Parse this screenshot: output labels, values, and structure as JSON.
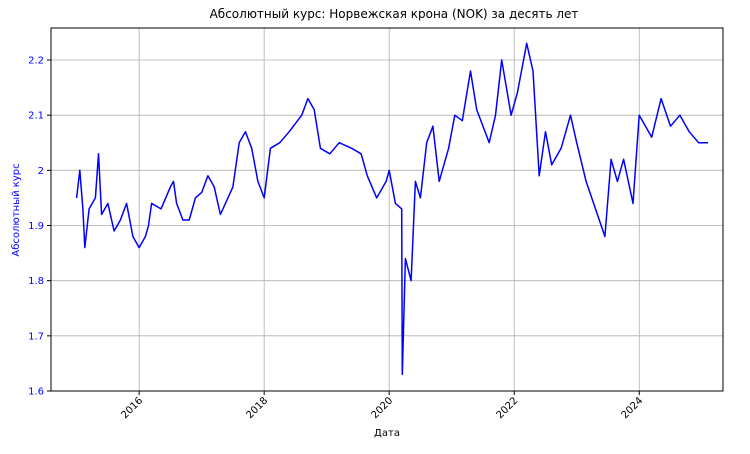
{
  "chart_data": {
    "type": "line",
    "title": "Абсолютный курс: Норвежская крона (NOK) за десять лет",
    "x_label": "Дата",
    "y_label": "Абсолютный курс",
    "grid": true,
    "xlim": [
      2014.59,
      2025.34
    ],
    "xticks": [
      2016,
      2018,
      2020,
      2022,
      2024
    ],
    "ylim": [
      1.6,
      2.258
    ],
    "yticks": [
      1.6,
      1.7,
      1.8,
      1.9,
      2.0,
      2.1,
      2.2
    ],
    "series": [
      {
        "name": "NOK",
        "color": "#0000ff",
        "x": [
          2015.0,
          2015.05,
          2015.1,
          2015.13,
          2015.2,
          2015.3,
          2015.35,
          2015.4,
          2015.5,
          2015.6,
          2015.7,
          2015.8,
          2015.9,
          2016.0,
          2016.1,
          2016.15,
          2016.2,
          2016.35,
          2016.5,
          2016.55,
          2016.6,
          2016.7,
          2016.8,
          2016.9,
          2017.0,
          2017.1,
          2017.2,
          2017.3,
          2017.5,
          2017.6,
          2017.7,
          2017.8,
          2017.9,
          2018.0,
          2018.1,
          2018.25,
          2018.4,
          2018.6,
          2018.7,
          2018.8,
          2018.9,
          2019.05,
          2019.2,
          2019.4,
          2019.55,
          2019.65,
          2019.8,
          2019.95,
          2020.0,
          2020.1,
          2020.2,
          2020.21,
          2020.26,
          2020.35,
          2020.42,
          2020.5,
          2020.6,
          2020.7,
          2020.8,
          2020.95,
          2021.05,
          2021.17,
          2021.3,
          2021.4,
          2021.6,
          2021.7,
          2021.8,
          2021.95,
          2022.05,
          2022.2,
          2022.3,
          2022.4,
          2022.5,
          2022.6,
          2022.75,
          2022.9,
          2023.0,
          2023.15,
          2023.3,
          2023.45,
          2023.55,
          2023.65,
          2023.75,
          2023.9,
          2024.0,
          2024.1,
          2024.2,
          2024.35,
          2024.5,
          2024.65,
          2024.8,
          2024.95,
          2025.1
        ],
        "values": [
          1.95,
          2.0,
          1.93,
          1.86,
          1.93,
          1.95,
          2.03,
          1.92,
          1.94,
          1.89,
          1.91,
          1.94,
          1.88,
          1.86,
          1.88,
          1.9,
          1.94,
          1.93,
          1.97,
          1.98,
          1.94,
          1.91,
          1.91,
          1.95,
          1.96,
          1.99,
          1.97,
          1.92,
          1.97,
          2.05,
          2.07,
          2.04,
          1.98,
          1.95,
          2.04,
          2.05,
          2.07,
          2.1,
          2.13,
          2.11,
          2.04,
          2.03,
          2.05,
          2.04,
          2.03,
          1.99,
          1.95,
          1.98,
          2.0,
          1.94,
          1.93,
          1.63,
          1.84,
          1.8,
          1.98,
          1.95,
          2.05,
          2.08,
          1.98,
          2.04,
          2.1,
          2.09,
          2.18,
          2.11,
          2.05,
          2.1,
          2.2,
          2.1,
          2.14,
          2.23,
          2.18,
          1.99,
          2.07,
          2.01,
          2.04,
          2.1,
          2.05,
          1.98,
          1.93,
          1.88,
          2.02,
          1.98,
          2.02,
          1.94,
          2.1,
          2.08,
          2.06,
          2.13,
          2.08,
          2.1,
          2.07,
          2.05,
          2.05
        ]
      }
    ]
  }
}
